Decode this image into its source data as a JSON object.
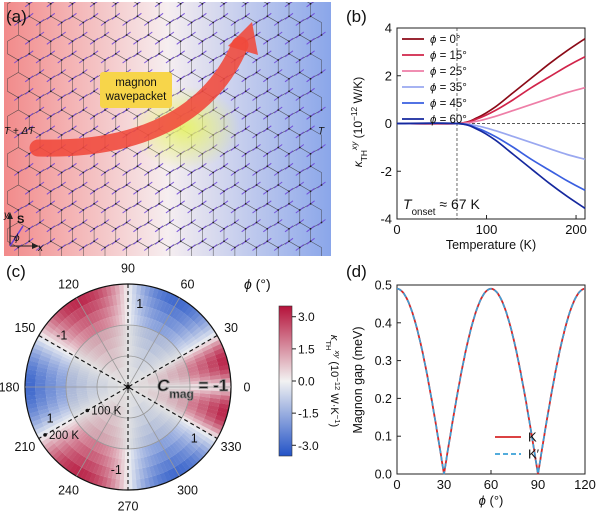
{
  "colors": {
    "hot": "#f28a8a",
    "cold": "#8aa6ea",
    "lattice": "#3a3a3a",
    "spin": "#6a3fd6",
    "arrow": "#f0493b",
    "wavepacket": "#e6f26a",
    "label_box": "#f7d54a",
    "series": [
      "#8b0a17",
      "#d1244a",
      "#ee7ea7",
      "#9aa8f0",
      "#3a5fe0",
      "#15289e"
    ],
    "K": "#d62728",
    "Kprime": "#3aa0d8",
    "cbar_pos": "#b5123a",
    "cbar_neg": "#2353c7"
  },
  "panel_a": {
    "label": "(a)",
    "wavepacket_label": "magnon\nwavepacket",
    "hot_label": "T + ΔT",
    "cold_label": "T",
    "axis_y": "y",
    "axis_x": "x",
    "spin_label": "S",
    "phi_label": "ϕ"
  },
  "chart_data": [
    {
      "type": "line",
      "panel": "(b)",
      "xlabel": "Temperature (K)",
      "ylabel": "κ_TH^xy (10^-12 W/K)",
      "xlim": [
        0,
        210
      ],
      "ylim": [
        -4,
        4
      ],
      "xticks": [
        0,
        100,
        200
      ],
      "yticks": [
        -4,
        -2,
        0,
        2,
        4
      ],
      "annotation": "T_onset ≈ 67 K",
      "onset": 67,
      "series": [
        {
          "name": "ϕ = 0°",
          "x": [
            0,
            67,
            90,
            110,
            130,
            150,
            170,
            190,
            210
          ],
          "values": [
            0,
            0,
            0.25,
            0.7,
            1.3,
            1.9,
            2.5,
            3.05,
            3.55
          ]
        },
        {
          "name": "ϕ = 15°",
          "x": [
            0,
            67,
            90,
            110,
            130,
            150,
            170,
            190,
            210
          ],
          "values": [
            0,
            0,
            0.2,
            0.55,
            1.0,
            1.5,
            1.95,
            2.4,
            2.8
          ]
        },
        {
          "name": "ϕ = 25°",
          "x": [
            0,
            67,
            90,
            110,
            130,
            150,
            170,
            190,
            210
          ],
          "values": [
            0,
            0,
            0.1,
            0.3,
            0.55,
            0.8,
            1.05,
            1.3,
            1.5
          ]
        },
        {
          "name": "ϕ = 35°",
          "x": [
            0,
            67,
            90,
            110,
            130,
            150,
            170,
            190,
            210
          ],
          "values": [
            0,
            0,
            -0.1,
            -0.3,
            -0.55,
            -0.8,
            -1.05,
            -1.3,
            -1.5
          ]
        },
        {
          "name": "ϕ = 45°",
          "x": [
            0,
            67,
            90,
            110,
            130,
            150,
            170,
            190,
            210
          ],
          "values": [
            0,
            0,
            -0.2,
            -0.55,
            -1.0,
            -1.5,
            -1.95,
            -2.4,
            -2.8
          ]
        },
        {
          "name": "ϕ = 60°",
          "x": [
            0,
            67,
            90,
            110,
            130,
            150,
            170,
            190,
            210
          ],
          "values": [
            0,
            0,
            -0.25,
            -0.7,
            -1.3,
            -1.9,
            -2.5,
            -3.05,
            -3.55
          ]
        }
      ]
    },
    {
      "type": "heatmap",
      "panel": "(c)",
      "title": "ϕ (°)",
      "angular_ticks": [
        0,
        30,
        60,
        90,
        120,
        150,
        180,
        210,
        240,
        270,
        300,
        330
      ],
      "radial_labels": [
        "100 K",
        "200 K"
      ],
      "radial_values": [
        100,
        200
      ],
      "sector_chern": [
        {
          "range": [
            0,
            30
          ],
          "value": "-1"
        },
        {
          "range": [
            30,
            90
          ],
          "value": "1"
        },
        {
          "range": [
            90,
            150
          ],
          "value": "-1"
        },
        {
          "range": [
            150,
            210
          ],
          "value": "1"
        },
        {
          "range": [
            210,
            270
          ],
          "value": "-1"
        },
        {
          "range": [
            270,
            330
          ],
          "value": "1"
        },
        {
          "range": [
            330,
            360
          ],
          "value": "-1"
        }
      ],
      "cmag_label": "C_mag = -1",
      "colorbar": {
        "label": "κ_TH^xy (10^-12 W·K^-1)",
        "range": [
          -3.5,
          3.5
        ],
        "ticks": [
          "3.0",
          "1.5",
          "0.0",
          "-1.5",
          "-3.0"
        ],
        "tick_values": [
          3.0,
          1.5,
          0.0,
          -1.5,
          -3.0
        ]
      }
    },
    {
      "type": "line",
      "panel": "(d)",
      "xlabel": "ϕ (°)",
      "ylabel": "Magnon gap (meV)",
      "xlim": [
        0,
        120
      ],
      "ylim": [
        0,
        0.5
      ],
      "xticks": [
        0,
        30,
        60,
        90,
        120
      ],
      "yticks": [
        "0.0",
        "0.1",
        "0.2",
        "0.3",
        "0.4",
        "0.5"
      ],
      "ytick_values": [
        0,
        0.1,
        0.2,
        0.3,
        0.4,
        0.5
      ],
      "gap_max": 0.49,
      "series": [
        {
          "name": "K",
          "style": "solid"
        },
        {
          "name": "K′",
          "style": "dashed"
        }
      ]
    }
  ]
}
